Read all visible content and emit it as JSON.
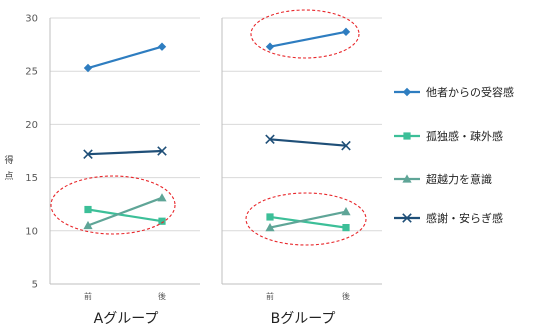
{
  "chart_data": {
    "type": "line",
    "ylabel": "得点",
    "ylim": [
      5,
      30
    ],
    "yticks": [
      "5",
      "10",
      "15",
      "20",
      "25",
      "30"
    ],
    "categories": [
      "前",
      "後"
    ],
    "grid": true,
    "legend_position": "right",
    "panels": [
      {
        "group_label": "Aグループ",
        "series": [
          {
            "name": "他者からの受容感",
            "values": [
              25.3,
              27.3
            ]
          },
          {
            "name": "孤独感・疎外感",
            "values": [
              12.0,
              10.9
            ]
          },
          {
            "name": "超越力を意識",
            "values": [
              10.5,
              13.1
            ]
          },
          {
            "name": "感謝・安らぎ感",
            "values": [
              17.2,
              17.5
            ]
          }
        ]
      },
      {
        "group_label": "Bグループ",
        "series": [
          {
            "name": "他者からの受容感",
            "values": [
              27.3,
              28.7
            ]
          },
          {
            "name": "孤独感・疎外感",
            "values": [
              11.3,
              10.3
            ]
          },
          {
            "name": "超越力を意識",
            "values": [
              10.3,
              11.8
            ]
          },
          {
            "name": "感謝・安らぎ感",
            "values": [
              18.6,
              18.0
            ]
          }
        ]
      }
    ],
    "series_styles": [
      {
        "color": "#2E7DC0",
        "marker": "diamond"
      },
      {
        "color": "#3CBF98",
        "marker": "square"
      },
      {
        "color": "#5FA597",
        "marker": "triangle"
      },
      {
        "color": "#1F4F78",
        "marker": "x"
      }
    ],
    "annotation_color": "#E8262A"
  }
}
